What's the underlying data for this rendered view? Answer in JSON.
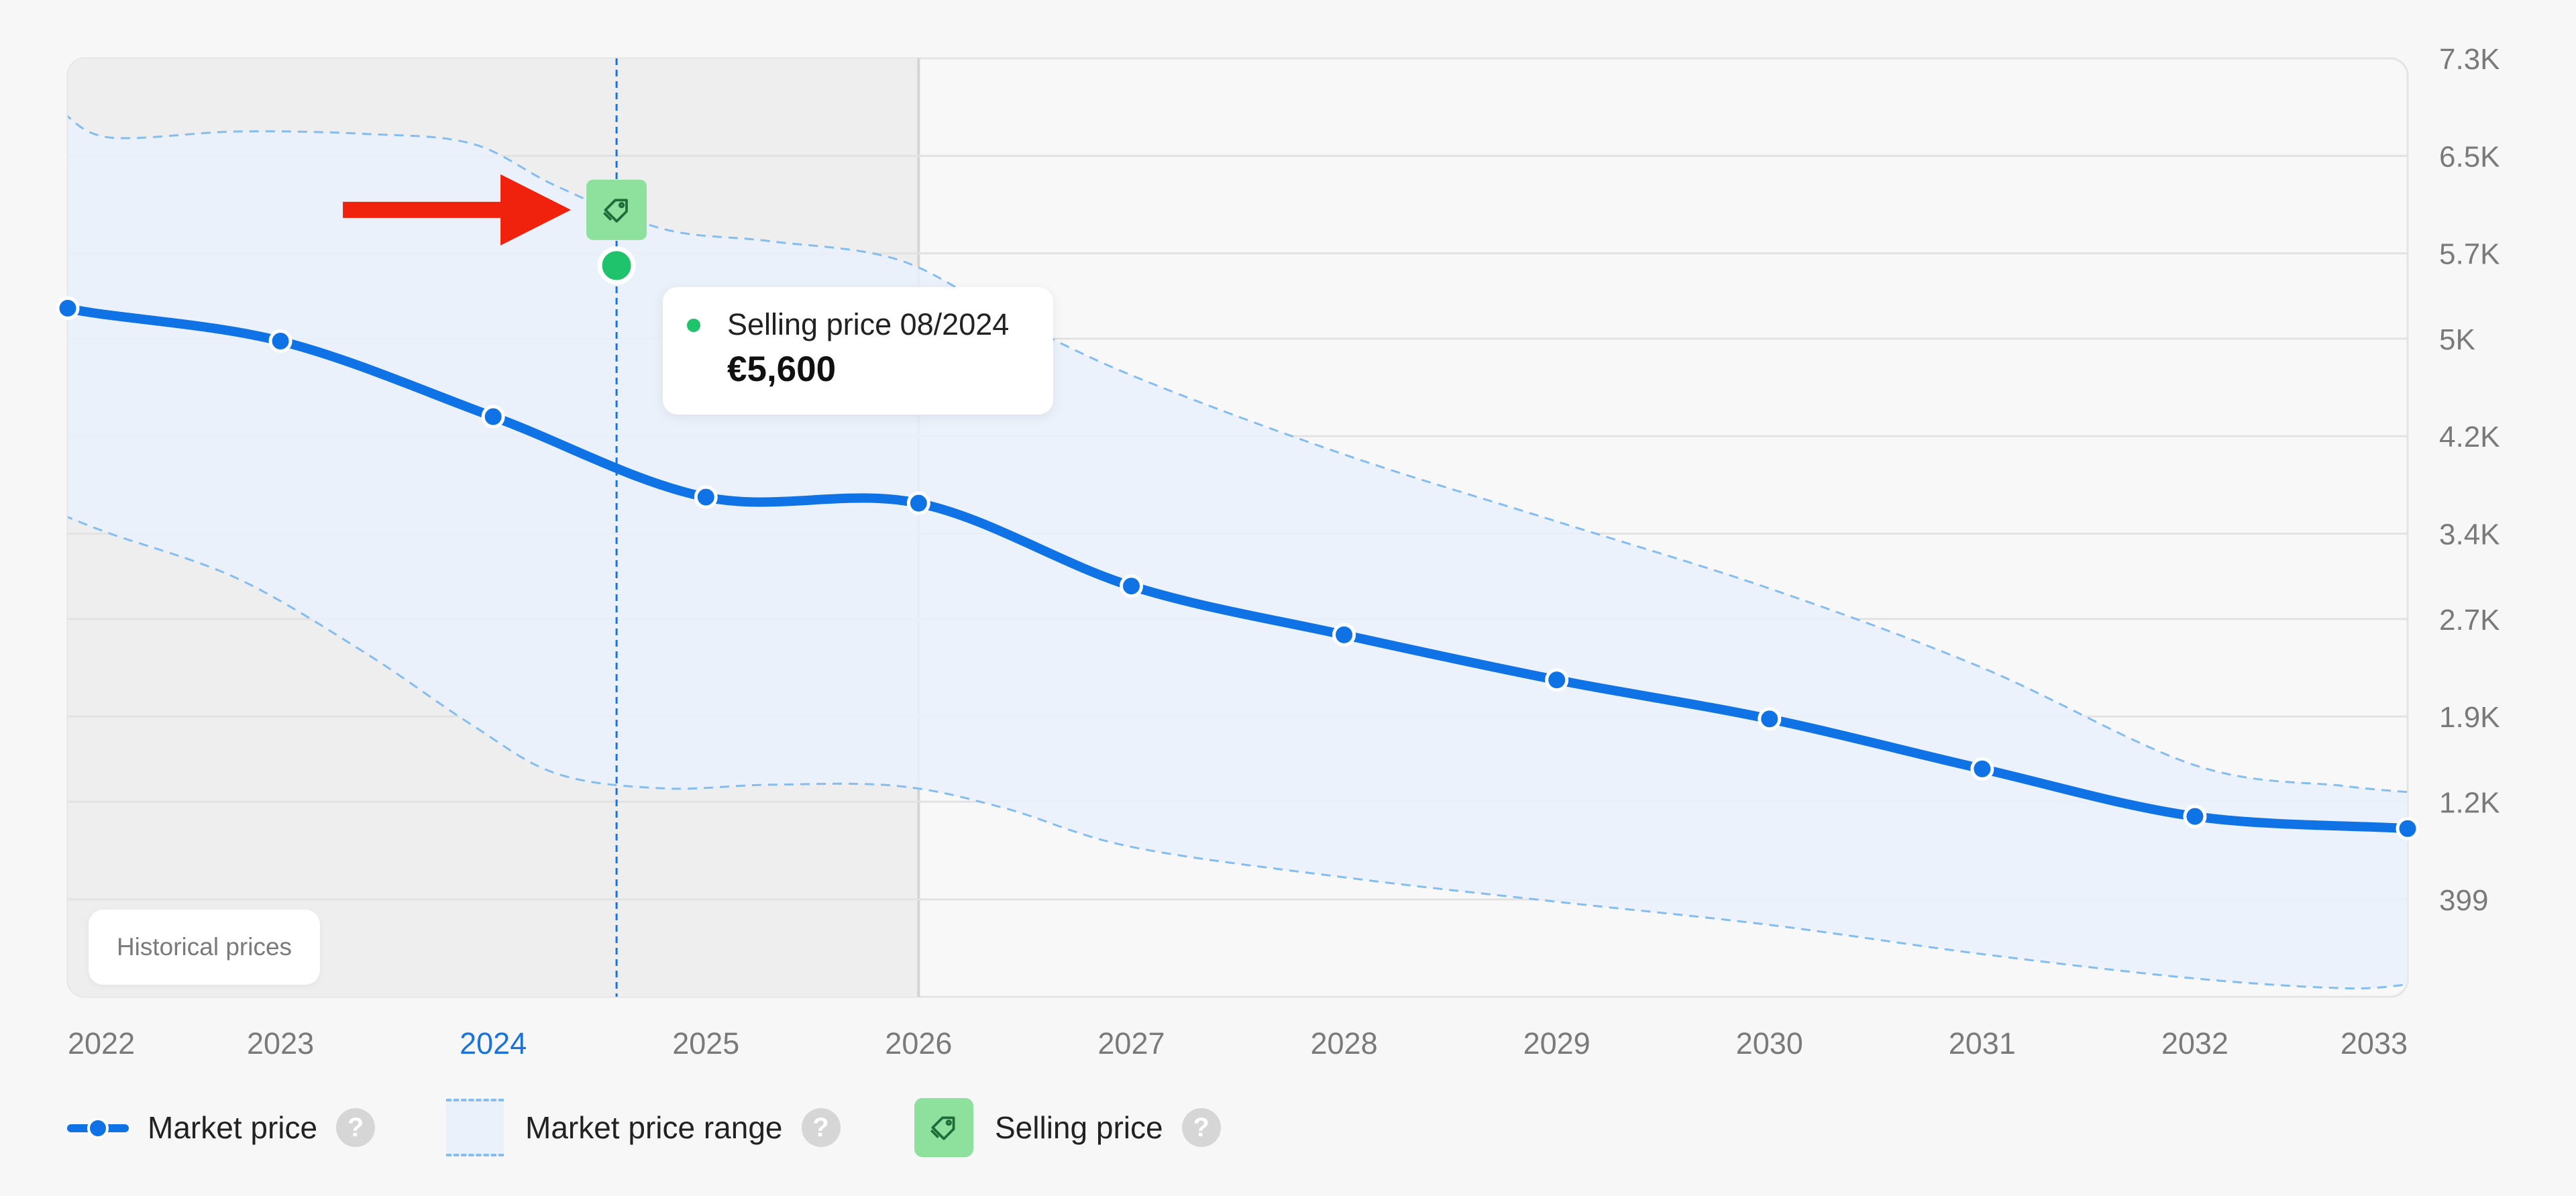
{
  "chart_data": {
    "type": "line",
    "x": [
      2022,
      2023,
      2024,
      2025,
      2026,
      2027,
      2028,
      2029,
      2030,
      2031,
      2032,
      2033
    ],
    "x_tick_labels": [
      "2022",
      "2023",
      "2024",
      "2025",
      "2026",
      "2027",
      "2028",
      "2029",
      "2030",
      "2031",
      "2032",
      "2033"
    ],
    "highlighted_x_tick": "2024",
    "y_tick_labels": [
      "7.3K",
      "6.5K",
      "5.7K",
      "5K",
      "4.2K",
      "3.4K",
      "2.7K",
      "1.9K",
      "1.2K",
      "399"
    ],
    "y_ticks": [
      7300,
      6500,
      5700,
      5000,
      4200,
      3400,
      2700,
      1900,
      1200,
      399
    ],
    "ylim": [
      -400,
      7300
    ],
    "grid": true,
    "historical_until": 2026,
    "series": [
      {
        "name": "Market price",
        "color": "#0f72e5",
        "values": [
          5250,
          4980,
          4360,
          3700,
          3650,
          2970,
          2570,
          2200,
          1880,
          1470,
          1080,
          980
        ]
      }
    ],
    "range_band": {
      "name": "Market price range",
      "color": "#84bdf0",
      "x": [
        2021.98,
        2022.2,
        2022.8,
        2023.4,
        2023.9,
        2024.3,
        2024.8,
        2025.3,
        2025.9,
        2026.4,
        2027.0,
        2028.0,
        2029.0,
        2030.0,
        2031.0,
        2032.0,
        2032.7,
        2033.0
      ],
      "upper": [
        6850,
        6650,
        6700,
        6680,
        6600,
        6250,
        5900,
        5800,
        5650,
        5200,
        4700,
        4050,
        3500,
        2950,
        2300,
        1500,
        1330,
        1280
      ],
      "lower": [
        3550,
        3400,
        3030,
        2420,
        1830,
        1430,
        1310,
        1340,
        1330,
        1150,
        830,
        580,
        380,
        190,
        -50,
        -250,
        -330,
        -300
      ]
    },
    "selling_price": {
      "name": "Selling price",
      "x": 2024.58,
      "value": 5600,
      "color": "#1fc36b",
      "tooltip_label": "Selling price 08/2024",
      "tooltip_value": "€5,600"
    },
    "annotation": "Historical prices"
  },
  "legend": {
    "market_price": "Market price",
    "market_price_range": "Market price range",
    "selling_price": "Selling price",
    "help": "?"
  },
  "icons": {
    "selling_price_marker": "price-tag-icon",
    "pointer": "red-arrow-icon",
    "help": "help-icon"
  },
  "colors": {
    "market_line": "#0f72e5",
    "range_dash": "#84bdf0",
    "range_fill": "#eaf1fb",
    "selling_green": "#1fc36b",
    "tag_bg": "#8ee19c",
    "arrow_red": "#f0210d",
    "axis_label": "#7a7a7a",
    "highlight_year": "#1a73d9"
  }
}
